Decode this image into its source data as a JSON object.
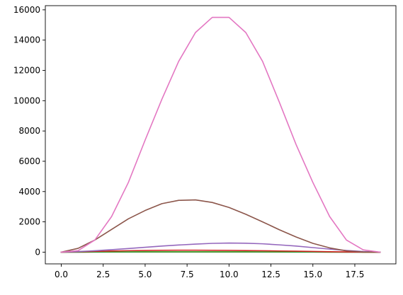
{
  "chart_data": {
    "type": "line",
    "title": "",
    "xlabel": "",
    "ylabel": "",
    "xlim": [
      -0.95,
      19.95
    ],
    "ylim": [
      -775,
      16275
    ],
    "grid": false,
    "legend": "none",
    "x_ticks": [
      0.0,
      2.5,
      5.0,
      7.5,
      10.0,
      12.5,
      15.0,
      17.5
    ],
    "x_tick_labels": [
      "0.0",
      "2.5",
      "5.0",
      "7.5",
      "10.0",
      "12.5",
      "15.0",
      "17.5"
    ],
    "y_ticks": [
      0,
      2000,
      4000,
      6000,
      8000,
      10000,
      12000,
      14000,
      16000
    ],
    "y_tick_labels": [
      "0",
      "2000",
      "4000",
      "6000",
      "8000",
      "10000",
      "12000",
      "14000",
      "16000"
    ],
    "x": [
      0,
      1,
      2,
      3,
      4,
      5,
      6,
      7,
      8,
      9,
      10,
      11,
      12,
      13,
      14,
      15,
      16,
      17,
      18,
      19
    ],
    "series": [
      {
        "color": "#1f77b4",
        "values": [
          0,
          1,
          2,
          3,
          4,
          4,
          5,
          5,
          5,
          5,
          5,
          5,
          4,
          4,
          3,
          3,
          2,
          1,
          1,
          0
        ]
      },
      {
        "color": "#ff7f0e",
        "values": [
          0,
          4,
          7,
          10,
          13,
          15,
          16,
          17,
          17,
          17,
          16,
          15,
          13,
          11,
          9,
          7,
          5,
          3,
          1,
          0
        ]
      },
      {
        "color": "#2ca02c",
        "values": [
          0,
          5,
          10,
          14,
          17,
          20,
          22,
          23,
          23,
          23,
          22,
          20,
          18,
          15,
          12,
          9,
          6,
          3,
          1,
          0
        ]
      },
      {
        "color": "#d62728",
        "values": [
          0,
          25,
          50,
          75,
          95,
          110,
          120,
          125,
          125,
          122,
          115,
          105,
          92,
          78,
          62,
          45,
          30,
          15,
          5,
          0
        ]
      },
      {
        "color": "#9467bd",
        "values": [
          0,
          40,
          90,
          160,
          240,
          320,
          400,
          470,
          530,
          580,
          600,
          590,
          550,
          480,
          400,
          300,
          200,
          110,
          40,
          0
        ]
      },
      {
        "color": "#8c564b",
        "values": [
          0,
          250,
          800,
          1500,
          2200,
          2750,
          3200,
          3420,
          3450,
          3280,
          2950,
          2500,
          2000,
          1480,
          1000,
          580,
          280,
          80,
          10,
          0
        ]
      },
      {
        "color": "#e377c2",
        "values": [
          0,
          100,
          800,
          2350,
          4600,
          7400,
          10100,
          12600,
          14500,
          15500,
          15500,
          14500,
          12600,
          9900,
          7100,
          4600,
          2350,
          800,
          150,
          0
        ]
      }
    ]
  }
}
